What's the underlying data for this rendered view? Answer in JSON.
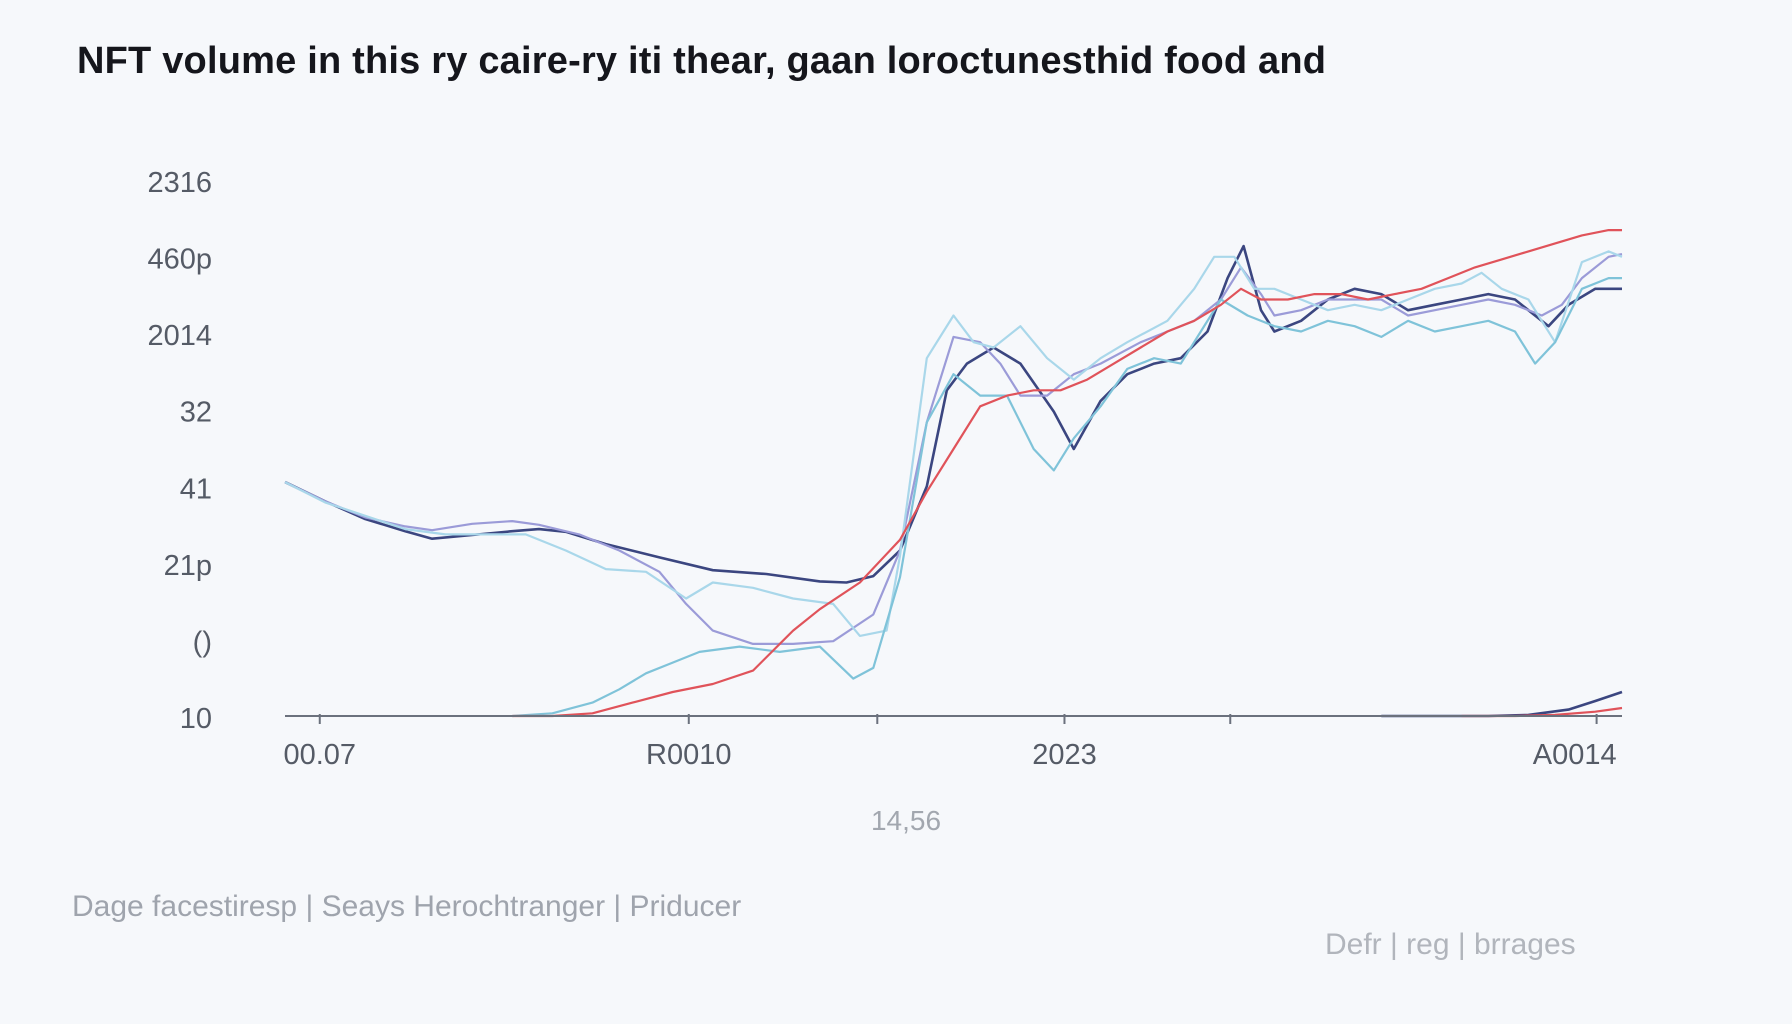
{
  "chart_data": {
    "type": "line",
    "title": "NFT volume in this ry caire-ry iti thear, gaan loroctunesthid food and",
    "xlabel": "14,56",
    "ylabel": "",
    "x_range": [
      0,
      100
    ],
    "y_range": [
      0,
      100
    ],
    "grid": false,
    "y_ticks": [
      "2316",
      "460p",
      "2014",
      "32",
      "41",
      "21p",
      "()",
      "10"
    ],
    "x_ticks": [
      "00.07",
      "R0010",
      "2023",
      "A0014"
    ],
    "x_tick_positions": [
      2.6,
      30.2,
      58.3,
      98.1
    ],
    "x_minor_ticks": [
      44.3,
      70.7
    ],
    "colors": {
      "dark_navy": "#3b4680",
      "lavender": "#9b9bd8",
      "light_blue": "#a9d7ea",
      "teal": "#7fc3d9",
      "red": "#e0535a"
    },
    "series": [
      {
        "color": "dark_navy",
        "points": [
          [
            0,
            43.8
          ],
          [
            3,
            40.2
          ],
          [
            6,
            36.9
          ],
          [
            9,
            34.6
          ],
          [
            11,
            33.2
          ],
          [
            14,
            33.9
          ],
          [
            17,
            34.6
          ],
          [
            19,
            35
          ],
          [
            21,
            34.5
          ],
          [
            24,
            32.2
          ],
          [
            28,
            29.7
          ],
          [
            32,
            27.3
          ],
          [
            36,
            26.6
          ],
          [
            40,
            25.2
          ],
          [
            42,
            25
          ],
          [
            44,
            26.2
          ],
          [
            46,
            31
          ],
          [
            48,
            43
          ],
          [
            49.5,
            61
          ],
          [
            51,
            66
          ],
          [
            53,
            69
          ],
          [
            55,
            66
          ],
          [
            57.5,
            57
          ],
          [
            59,
            50
          ],
          [
            61,
            59
          ],
          [
            63,
            64
          ],
          [
            65,
            66
          ],
          [
            67,
            67
          ],
          [
            69,
            72
          ],
          [
            70.5,
            82
          ],
          [
            71.7,
            88
          ],
          [
            73,
            76
          ],
          [
            74,
            72
          ],
          [
            76,
            74
          ],
          [
            78,
            78
          ],
          [
            80,
            80
          ],
          [
            82,
            79
          ],
          [
            84,
            76
          ],
          [
            86,
            77
          ],
          [
            88,
            78
          ],
          [
            90,
            79
          ],
          [
            92,
            78
          ],
          [
            93,
            76
          ],
          [
            94.5,
            73
          ],
          [
            96,
            77
          ],
          [
            98,
            80
          ],
          [
            100,
            80
          ]
        ]
      },
      {
        "color": "dark_navy",
        "points": [
          [
            82,
            0
          ],
          [
            86,
            0
          ],
          [
            90,
            0
          ],
          [
            93,
            0.2
          ],
          [
            96,
            1.2
          ],
          [
            98,
            2.8
          ],
          [
            100,
            4.5
          ]
        ]
      },
      {
        "color": "lavender",
        "points": [
          [
            0,
            43.8
          ],
          [
            3,
            40.2
          ],
          [
            6,
            37.2
          ],
          [
            9,
            35.5
          ],
          [
            11,
            34.8
          ],
          [
            14,
            36
          ],
          [
            17,
            36.5
          ],
          [
            19,
            35.8
          ],
          [
            22,
            34
          ],
          [
            25,
            31
          ],
          [
            28,
            27
          ],
          [
            30,
            21
          ],
          [
            32,
            16
          ],
          [
            35,
            13.5
          ],
          [
            38,
            13.5
          ],
          [
            41,
            14
          ],
          [
            44,
            19
          ],
          [
            46,
            31
          ],
          [
            48,
            55
          ],
          [
            50,
            71
          ],
          [
            52,
            70
          ],
          [
            53.5,
            66
          ],
          [
            55,
            60
          ],
          [
            57,
            60
          ],
          [
            59,
            64
          ],
          [
            61,
            66
          ],
          [
            64,
            70
          ],
          [
            66,
            72
          ],
          [
            68,
            74
          ],
          [
            70,
            78
          ],
          [
            71.5,
            84
          ],
          [
            73,
            79
          ],
          [
            74,
            75
          ],
          [
            76,
            76
          ],
          [
            78,
            78
          ],
          [
            80,
            78
          ],
          [
            82,
            78
          ],
          [
            84,
            75
          ],
          [
            86,
            76
          ],
          [
            88,
            77
          ],
          [
            90,
            78
          ],
          [
            92,
            77
          ],
          [
            94,
            75
          ],
          [
            95.5,
            77
          ],
          [
            97,
            82
          ],
          [
            99,
            86
          ],
          [
            100,
            86.5
          ]
        ]
      },
      {
        "color": "light_blue",
        "points": [
          [
            0,
            43.8
          ],
          [
            3,
            40
          ],
          [
            6,
            37.5
          ],
          [
            9,
            35
          ],
          [
            12,
            34
          ],
          [
            15,
            34
          ],
          [
            18,
            34
          ],
          [
            21,
            31
          ],
          [
            24,
            27.5
          ],
          [
            27,
            27
          ],
          [
            30,
            22
          ],
          [
            32,
            25
          ],
          [
            35,
            24
          ],
          [
            38,
            22
          ],
          [
            41,
            21
          ],
          [
            43,
            15
          ],
          [
            45,
            16
          ],
          [
            46,
            30
          ],
          [
            48,
            67
          ],
          [
            50,
            75
          ],
          [
            51.5,
            70
          ],
          [
            53,
            69
          ],
          [
            55,
            73
          ],
          [
            57,
            67
          ],
          [
            59,
            63
          ],
          [
            61,
            67
          ],
          [
            63,
            70
          ],
          [
            66,
            74
          ],
          [
            68,
            80
          ],
          [
            69.5,
            86
          ],
          [
            71,
            86
          ],
          [
            72.5,
            80
          ],
          [
            74,
            80
          ],
          [
            76,
            78
          ],
          [
            78,
            76
          ],
          [
            80,
            77
          ],
          [
            82,
            76
          ],
          [
            84,
            78
          ],
          [
            86,
            80
          ],
          [
            88,
            81
          ],
          [
            89.5,
            83
          ],
          [
            91,
            80
          ],
          [
            93,
            78
          ],
          [
            95,
            70
          ],
          [
            97,
            85
          ],
          [
            99,
            87
          ],
          [
            100,
            86
          ]
        ]
      },
      {
        "color": "teal",
        "points": [
          [
            17,
            0
          ],
          [
            20,
            0.5
          ],
          [
            23,
            2.5
          ],
          [
            25,
            5
          ],
          [
            27,
            8
          ],
          [
            29,
            10
          ],
          [
            31,
            12
          ],
          [
            34,
            13
          ],
          [
            37,
            12
          ],
          [
            40,
            13
          ],
          [
            42.5,
            7
          ],
          [
            44,
            9
          ],
          [
            46,
            26
          ],
          [
            48,
            55
          ],
          [
            50,
            64
          ],
          [
            52,
            60
          ],
          [
            54,
            60
          ],
          [
            56,
            50
          ],
          [
            57.5,
            46
          ],
          [
            59,
            52
          ],
          [
            61,
            58
          ],
          [
            63,
            65
          ],
          [
            65,
            67
          ],
          [
            67,
            66
          ],
          [
            68.5,
            72
          ],
          [
            70,
            78
          ],
          [
            72,
            75
          ],
          [
            74,
            73
          ],
          [
            76,
            72
          ],
          [
            78,
            74
          ],
          [
            80,
            73
          ],
          [
            82,
            71
          ],
          [
            84,
            74
          ],
          [
            86,
            72
          ],
          [
            88,
            73
          ],
          [
            90,
            74
          ],
          [
            92,
            72
          ],
          [
            93.5,
            66
          ],
          [
            95,
            70
          ],
          [
            97,
            80
          ],
          [
            99,
            82
          ],
          [
            100,
            82
          ]
        ]
      },
      {
        "color": "red",
        "points": [
          [
            17,
            0
          ],
          [
            20,
            0
          ],
          [
            23,
            0.5
          ],
          [
            26,
            2.5
          ],
          [
            29,
            4.5
          ],
          [
            32,
            6
          ],
          [
            35,
            8.5
          ],
          [
            38,
            16
          ],
          [
            40,
            20
          ],
          [
            43,
            25
          ],
          [
            46,
            33
          ],
          [
            48,
            42
          ],
          [
            50,
            50
          ],
          [
            52,
            58
          ],
          [
            54,
            60
          ],
          [
            56,
            61
          ],
          [
            58,
            61
          ],
          [
            60,
            63
          ],
          [
            62,
            66
          ],
          [
            64,
            69
          ],
          [
            66,
            72
          ],
          [
            68,
            74
          ],
          [
            70,
            77
          ],
          [
            71.5,
            80
          ],
          [
            73,
            78
          ],
          [
            75,
            78
          ],
          [
            77,
            79
          ],
          [
            79,
            79
          ],
          [
            81,
            78
          ],
          [
            83,
            79
          ],
          [
            85,
            80
          ],
          [
            87,
            82
          ],
          [
            89,
            84
          ],
          [
            91,
            85.5
          ],
          [
            93,
            87
          ],
          [
            95,
            88.5
          ],
          [
            97,
            90
          ],
          [
            99,
            91
          ],
          [
            100,
            91
          ]
        ]
      },
      {
        "color": "red",
        "points": [
          [
            88,
            0
          ],
          [
            92,
            0
          ],
          [
            95,
            0.2
          ],
          [
            98,
            0.8
          ],
          [
            100,
            1.5
          ]
        ]
      }
    ]
  },
  "footer": {
    "source": "Dage facestiresp | Seays Herochtranger | Priducer",
    "credit": "Defr | reg | brrages"
  }
}
